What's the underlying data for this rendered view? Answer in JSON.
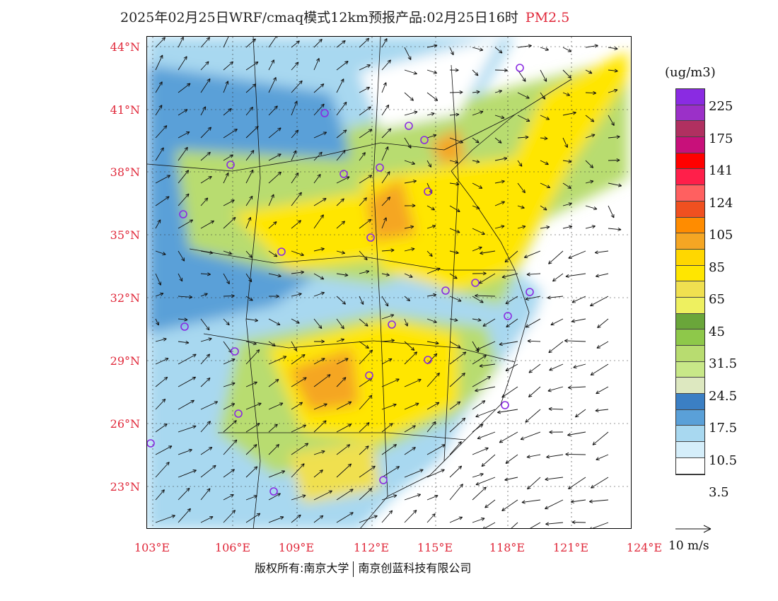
{
  "header": {
    "title": "2025年02月25日WRF/cmaq模式12km预报产品:02月25日16时",
    "pollutant": "PM2.5"
  },
  "map": {
    "lat_labels": [
      "44°N",
      "41°N",
      "38°N",
      "35°N",
      "32°N",
      "29°N",
      "26°N",
      "23°N"
    ],
    "lon_labels": [
      "103°E",
      "106°E",
      "109°E",
      "112°E",
      "115°E",
      "118°E",
      "121°E",
      "124°E"
    ]
  },
  "legend": {
    "unit": "(ug/m3)",
    "colors": [
      "#8a2be2",
      "#9b30c8",
      "#b03060",
      "#c8107a",
      "#ff0000",
      "#ff1f4a",
      "#ff6060",
      "#f05020",
      "#ff8c00",
      "#f5a623",
      "#ffd700",
      "#ffe600",
      "#f0e050",
      "#eef060",
      "#6aa63a",
      "#8ec84a",
      "#b8dc70",
      "#c8e888",
      "#dde8c0",
      "#3b7fc4",
      "#5aa0d8",
      "#a8d8f0",
      "#d5eefa",
      "#ffffff"
    ],
    "labels": [
      "225",
      "175",
      "141",
      "124",
      "105",
      "85",
      "65",
      "45",
      "31.5",
      "24.5",
      "17.5",
      "10.5",
      "3.5"
    ],
    "reference_wind": "10 m/s"
  },
  "footer": {
    "copyright": "版权所有:南京大学",
    "company": "南京创蓝科技有限公司"
  }
}
